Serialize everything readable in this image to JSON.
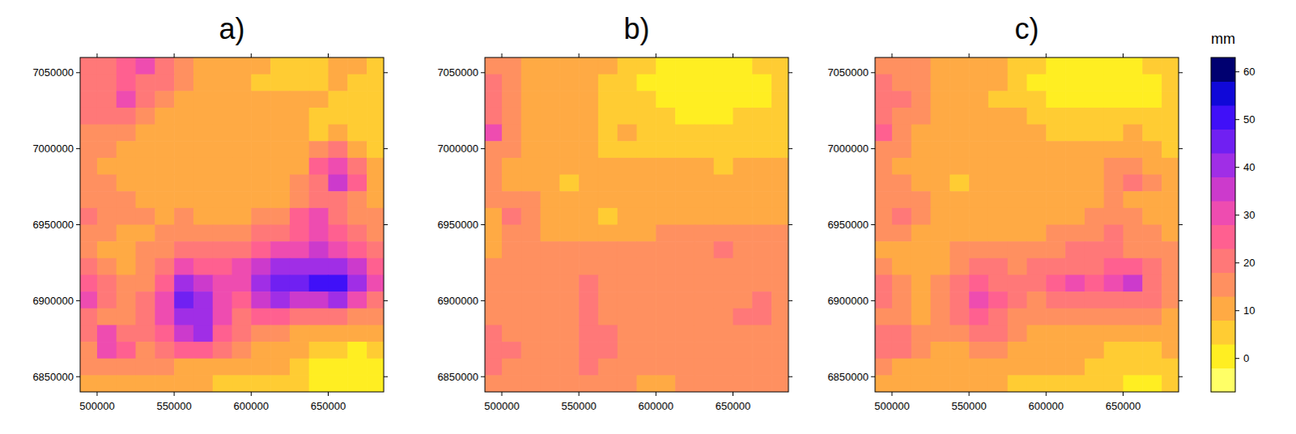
{
  "chart_data": {
    "type": "heatmap",
    "xlim": [
      489000,
      686000
    ],
    "ylim": [
      6840000,
      7060000
    ],
    "xticks": [
      500000,
      550000,
      600000,
      650000
    ],
    "yticks": [
      6850000,
      6900000,
      6950000,
      7000000,
      7050000
    ],
    "x": [
      493750,
      506250,
      518750,
      531250,
      543750,
      556250,
      568750,
      581250,
      593750,
      606250,
      618750,
      631250,
      643750,
      656250,
      668750,
      681250
    ],
    "y": [
      7054500,
      7043500,
      7032500,
      7021500,
      7010500,
      6999500,
      6988500,
      6977500,
      6966500,
      6955500,
      6944500,
      6933500,
      6922500,
      6911500,
      6900500,
      6889500,
      6878500,
      6867500,
      6856500,
      6845500
    ],
    "colorbar": {
      "title": "mm",
      "range": [
        -7,
        63
      ],
      "ticks": [
        0,
        10,
        20,
        30,
        40,
        50,
        60
      ],
      "colors": [
        "#FFFF66",
        "#FFEE22",
        "#FFCC33",
        "#FFAA44",
        "#FF9060",
        "#FF7878",
        "#FF6090",
        "#EE4CB0",
        "#CC3ACC",
        "#A02EE6",
        "#7020F2",
        "#4010F8",
        "#1008D8",
        "#000070"
      ]
    },
    "panels": [
      {
        "title": "a)",
        "z": [
          [
            18,
            22,
            24,
            30,
            20,
            14,
            12,
            10,
            8,
            8,
            6,
            6,
            6,
            8,
            8,
            6
          ],
          [
            20,
            22,
            26,
            22,
            18,
            14,
            10,
            10,
            8,
            6,
            6,
            6,
            6,
            8,
            6,
            6
          ],
          [
            18,
            22,
            28,
            20,
            14,
            12,
            12,
            10,
            8,
            8,
            10,
            10,
            8,
            6,
            6,
            4
          ],
          [
            20,
            18,
            20,
            16,
            12,
            12,
            10,
            12,
            10,
            10,
            12,
            8,
            6,
            6,
            4,
            4
          ],
          [
            16,
            16,
            14,
            12,
            12,
            10,
            10,
            8,
            10,
            12,
            10,
            8,
            6,
            10,
            6,
            4
          ],
          [
            16,
            14,
            12,
            12,
            10,
            12,
            8,
            8,
            10,
            8,
            10,
            12,
            14,
            18,
            10,
            6
          ],
          [
            14,
            12,
            12,
            12,
            10,
            10,
            8,
            10,
            8,
            10,
            10,
            12,
            24,
            30,
            20,
            10
          ],
          [
            14,
            14,
            12,
            12,
            10,
            10,
            10,
            8,
            10,
            10,
            12,
            14,
            22,
            34,
            26,
            12
          ],
          [
            16,
            16,
            14,
            12,
            12,
            12,
            10,
            10,
            10,
            12,
            12,
            16,
            20,
            18,
            14,
            12
          ],
          [
            18,
            16,
            14,
            14,
            12,
            14,
            12,
            12,
            12,
            14,
            16,
            24,
            28,
            20,
            16,
            14
          ],
          [
            16,
            14,
            12,
            12,
            14,
            16,
            14,
            14,
            14,
            18,
            22,
            26,
            30,
            26,
            22,
            16
          ],
          [
            14,
            12,
            12,
            14,
            16,
            20,
            18,
            18,
            20,
            26,
            30,
            32,
            34,
            30,
            26,
            20
          ],
          [
            20,
            14,
            12,
            14,
            20,
            28,
            26,
            24,
            28,
            36,
            40,
            38,
            42,
            40,
            34,
            24
          ],
          [
            26,
            18,
            14,
            16,
            26,
            40,
            36,
            28,
            30,
            42,
            44,
            44,
            48,
            52,
            40,
            28
          ],
          [
            28,
            18,
            14,
            18,
            30,
            44,
            42,
            30,
            26,
            36,
            40,
            36,
            36,
            38,
            30,
            22
          ],
          [
            22,
            16,
            14,
            18,
            28,
            40,
            38,
            28,
            22,
            24,
            24,
            22,
            20,
            18,
            16,
            14
          ],
          [
            18,
            28,
            20,
            20,
            26,
            34,
            38,
            26,
            18,
            16,
            14,
            12,
            12,
            10,
            10,
            10
          ],
          [
            16,
            30,
            26,
            16,
            18,
            24,
            26,
            18,
            14,
            12,
            10,
            8,
            6,
            4,
            2,
            4
          ],
          [
            14,
            16,
            14,
            14,
            14,
            12,
            12,
            10,
            10,
            8,
            8,
            6,
            2,
            0,
            0,
            2
          ],
          [
            12,
            12,
            12,
            10,
            10,
            8,
            8,
            6,
            6,
            6,
            6,
            4,
            0,
            -2,
            -2,
            0
          ]
        ]
      },
      {
        "title": "b)",
        "z": [
          [
            16,
            14,
            12,
            10,
            10,
            10,
            8,
            6,
            4,
            2,
            2,
            2,
            2,
            2,
            4,
            6
          ],
          [
            18,
            14,
            10,
            10,
            10,
            8,
            6,
            4,
            2,
            2,
            0,
            0,
            0,
            2,
            2,
            4
          ],
          [
            18,
            16,
            12,
            10,
            8,
            8,
            6,
            4,
            4,
            2,
            2,
            0,
            0,
            0,
            2,
            4
          ],
          [
            22,
            16,
            12,
            10,
            10,
            8,
            6,
            6,
            6,
            4,
            2,
            2,
            2,
            4,
            4,
            4
          ],
          [
            30,
            16,
            12,
            10,
            10,
            8,
            6,
            8,
            6,
            4,
            4,
            4,
            4,
            4,
            4,
            4
          ],
          [
            16,
            14,
            12,
            10,
            8,
            8,
            6,
            6,
            6,
            6,
            6,
            4,
            4,
            4,
            4,
            6
          ],
          [
            14,
            12,
            12,
            10,
            8,
            8,
            8,
            8,
            8,
            8,
            8,
            8,
            6,
            8,
            8,
            8
          ],
          [
            14,
            12,
            10,
            8,
            4,
            8,
            8,
            8,
            8,
            10,
            8,
            8,
            8,
            8,
            8,
            8
          ],
          [
            14,
            16,
            14,
            10,
            8,
            8,
            8,
            8,
            10,
            10,
            10,
            10,
            10,
            10,
            8,
            8
          ],
          [
            12,
            20,
            16,
            10,
            8,
            8,
            6,
            8,
            10,
            10,
            10,
            10,
            10,
            10,
            10,
            10
          ],
          [
            12,
            14,
            14,
            10,
            8,
            10,
            10,
            10,
            10,
            14,
            14,
            14,
            14,
            14,
            14,
            14
          ],
          [
            10,
            14,
            14,
            14,
            14,
            14,
            14,
            14,
            14,
            14,
            14,
            14,
            20,
            14,
            14,
            14
          ],
          [
            14,
            14,
            14,
            14,
            14,
            14,
            14,
            14,
            14,
            14,
            14,
            14,
            16,
            14,
            14,
            14
          ],
          [
            14,
            14,
            14,
            14,
            16,
            20,
            14,
            14,
            14,
            14,
            14,
            14,
            14,
            14,
            14,
            14
          ],
          [
            14,
            14,
            14,
            14,
            16,
            20,
            14,
            14,
            14,
            14,
            14,
            14,
            14,
            16,
            18,
            14
          ],
          [
            16,
            14,
            14,
            14,
            16,
            20,
            14,
            14,
            14,
            14,
            14,
            14,
            14,
            18,
            22,
            16
          ],
          [
            20,
            16,
            14,
            14,
            16,
            20,
            18,
            14,
            14,
            14,
            14,
            14,
            14,
            14,
            16,
            14
          ],
          [
            22,
            18,
            14,
            14,
            16,
            22,
            18,
            14,
            14,
            14,
            14,
            14,
            14,
            14,
            14,
            14
          ],
          [
            18,
            16,
            14,
            14,
            16,
            18,
            16,
            14,
            14,
            14,
            14,
            14,
            14,
            14,
            14,
            14
          ],
          [
            16,
            14,
            14,
            14,
            14,
            16,
            14,
            14,
            12,
            12,
            14,
            14,
            14,
            14,
            14,
            14
          ]
        ]
      },
      {
        "title": "c)",
        "z": [
          [
            16,
            16,
            14,
            12,
            10,
            8,
            8,
            6,
            4,
            2,
            2,
            2,
            2,
            2,
            4,
            4
          ],
          [
            18,
            16,
            14,
            10,
            10,
            8,
            8,
            4,
            2,
            2,
            0,
            0,
            0,
            2,
            2,
            4
          ],
          [
            18,
            18,
            14,
            10,
            10,
            8,
            6,
            6,
            4,
            2,
            2,
            2,
            0,
            2,
            2,
            4
          ],
          [
            22,
            16,
            14,
            10,
            10,
            8,
            8,
            8,
            6,
            4,
            4,
            4,
            4,
            4,
            4,
            4
          ],
          [
            24,
            16,
            12,
            10,
            10,
            8,
            8,
            8,
            8,
            6,
            6,
            6,
            6,
            8,
            6,
            4
          ],
          [
            16,
            14,
            12,
            10,
            8,
            8,
            8,
            8,
            8,
            8,
            8,
            8,
            10,
            12,
            8,
            6
          ],
          [
            14,
            12,
            12,
            10,
            8,
            8,
            8,
            8,
            8,
            8,
            8,
            10,
            14,
            16,
            12,
            8
          ],
          [
            14,
            14,
            12,
            10,
            6,
            8,
            8,
            8,
            8,
            10,
            10,
            10,
            14,
            18,
            14,
            10
          ],
          [
            14,
            16,
            14,
            10,
            8,
            10,
            8,
            8,
            10,
            10,
            10,
            12,
            14,
            12,
            10,
            10
          ],
          [
            14,
            18,
            16,
            12,
            10,
            10,
            8,
            10,
            10,
            12,
            12,
            14,
            16,
            14,
            12,
            10
          ],
          [
            14,
            14,
            12,
            12,
            12,
            12,
            12,
            12,
            12,
            14,
            16,
            16,
            18,
            16,
            14,
            12
          ],
          [
            12,
            12,
            12,
            12,
            14,
            16,
            14,
            14,
            14,
            16,
            18,
            18,
            20,
            16,
            16,
            14
          ],
          [
            16,
            12,
            12,
            12,
            16,
            20,
            18,
            16,
            18,
            20,
            22,
            22,
            24,
            24,
            18,
            14
          ],
          [
            18,
            14,
            12,
            14,
            18,
            26,
            22,
            18,
            18,
            26,
            28,
            26,
            30,
            34,
            22,
            16
          ],
          [
            20,
            14,
            12,
            14,
            20,
            28,
            24,
            18,
            16,
            20,
            22,
            20,
            20,
            22,
            18,
            14
          ],
          [
            16,
            14,
            12,
            14,
            18,
            24,
            22,
            16,
            14,
            14,
            14,
            14,
            14,
            14,
            14,
            12
          ],
          [
            18,
            18,
            14,
            14,
            16,
            20,
            20,
            14,
            12,
            12,
            12,
            10,
            10,
            10,
            10,
            10
          ],
          [
            20,
            20,
            16,
            12,
            12,
            16,
            16,
            12,
            10,
            10,
            8,
            8,
            6,
            6,
            6,
            8
          ],
          [
            14,
            12,
            10,
            10,
            10,
            10,
            10,
            10,
            8,
            8,
            8,
            6,
            4,
            4,
            4,
            4
          ],
          [
            10,
            10,
            8,
            8,
            8,
            8,
            8,
            6,
            6,
            6,
            6,
            4,
            4,
            2,
            2,
            4
          ]
        ]
      }
    ]
  }
}
